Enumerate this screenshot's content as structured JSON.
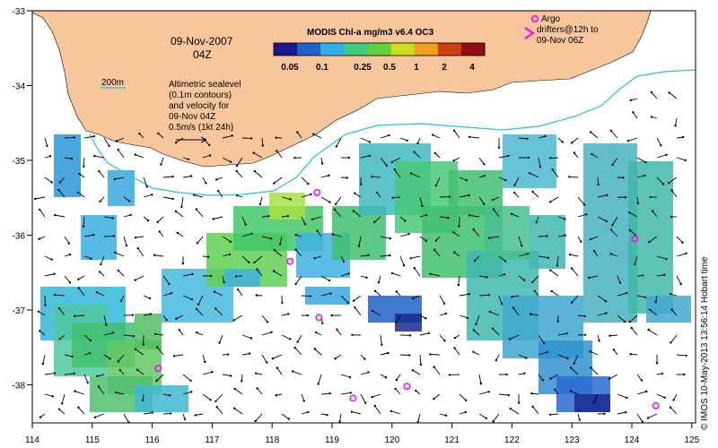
{
  "map": {
    "date_label": "09-Nov-2007",
    "time_label": "04Z",
    "contour_label": "200m",
    "note_lines": [
      "Altimetric sealevel",
      "(0.1m contours)",
      "and velocity for",
      "09-Nov 04Z",
      "0.5m/s (1kt 24h)"
    ],
    "colorbar_title": "MODIS Chl-a mg/m3 v6.4 OC3",
    "colorbar_ticks": [
      "0.05",
      "0.1",
      "0.25",
      "0.5",
      "1",
      "2",
      "4"
    ],
    "argo_lines": [
      "Argo",
      "drifters@12h to",
      "09-Nov 06Z"
    ],
    "side_text": "© IMOS 10-May-2013 13:56:14 Hobart time",
    "x_ticks": [
      "114",
      "115",
      "116",
      "117",
      "118",
      "119",
      "120",
      "121",
      "122",
      "123",
      "124",
      "125"
    ],
    "y_ticks": [
      "-33",
      "-34",
      "-35",
      "-36",
      "-37",
      "-38"
    ],
    "argo_floats": [
      {
        "lon": 118.75,
        "lat": -35.43
      },
      {
        "lon": 118.3,
        "lat": -36.35
      },
      {
        "lon": 118.78,
        "lat": -37.1
      },
      {
        "lon": 116.1,
        "lat": -37.78
      },
      {
        "lon": 119.35,
        "lat": -38.18
      },
      {
        "lon": 120.25,
        "lat": -38.02
      },
      {
        "lon": 124.05,
        "lat": -36.05
      },
      {
        "lon": 124.4,
        "lat": -38.28
      }
    ],
    "colors": {
      "land": "#f8c69c",
      "contour": "#22c4d8",
      "argo": "#ff00ff",
      "colorbar": [
        "#1a1a8c",
        "#2060d0",
        "#30b0e8",
        "#40c880",
        "#60d040",
        "#c8e020",
        "#f0a020",
        "#d04010",
        "#901010"
      ]
    }
  }
}
